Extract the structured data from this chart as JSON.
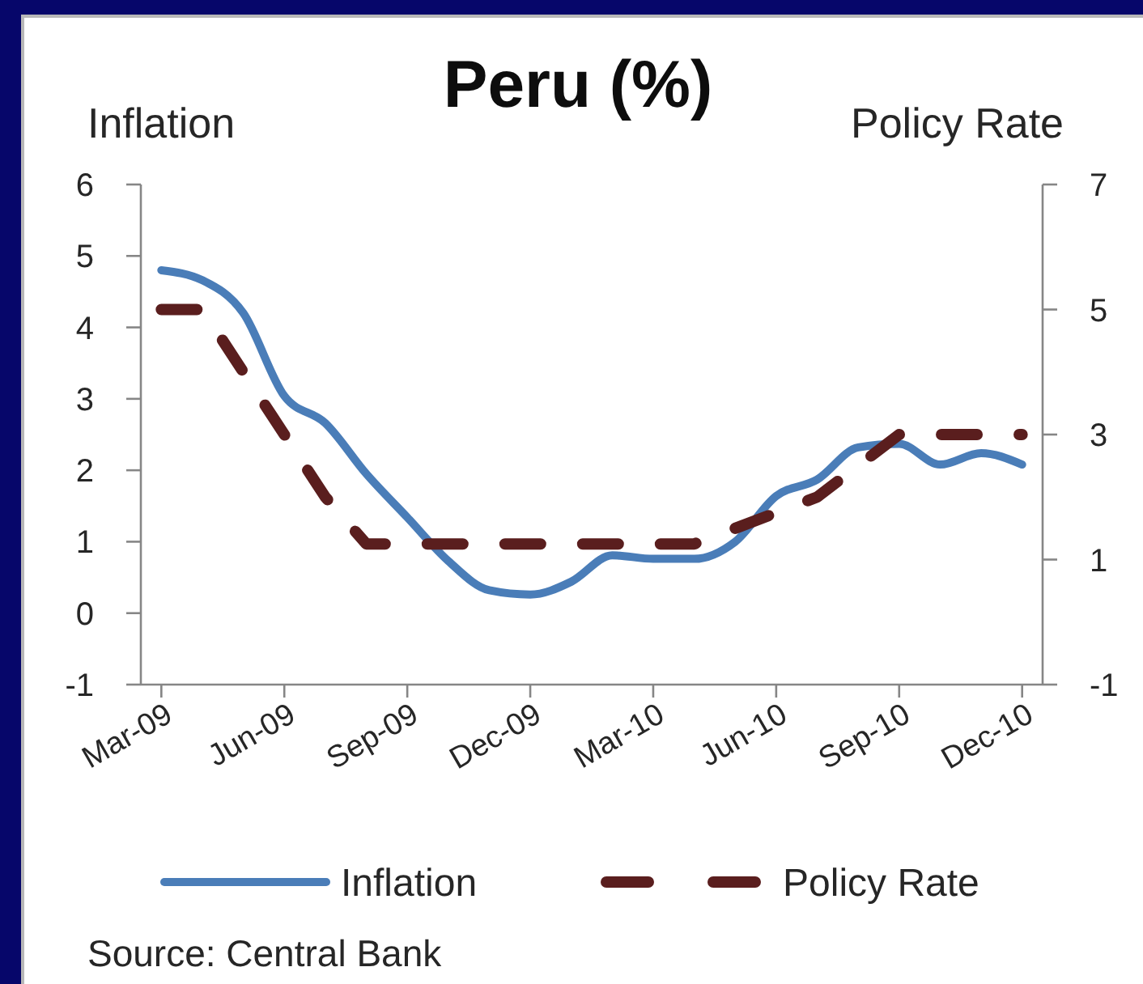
{
  "chart_data": {
    "type": "line",
    "title": "Peru (%)",
    "ylabel": "Inflation",
    "y2label": "Policy Rate",
    "categories": [
      "Mar-09",
      null,
      null,
      "Jun-09",
      null,
      null,
      "Sep-09",
      null,
      null,
      "Dec-09",
      null,
      null,
      "Mar-10",
      null,
      null,
      "Jun-10",
      null,
      null,
      "Sep-10",
      null,
      null,
      "Dec-10"
    ],
    "series": [
      {
        "name": "Inflation",
        "color": "#4a7db8",
        "line_style": "solid",
        "values": [
          4.8,
          4.66,
          4.2,
          3.04,
          2.66,
          1.95,
          1.34,
          0.73,
          0.32,
          0.26,
          0.44,
          0.81,
          0.76,
          0.76,
          1.0,
          1.64,
          1.87,
          2.32,
          2.37,
          2.08,
          2.24,
          2.08
        ]
      },
      {
        "name": "Policy Rate",
        "color": "#5a1e1e",
        "line_style": "dashed",
        "axis": "y2",
        "values": [
          5,
          5,
          4,
          3,
          2,
          1.25,
          1.25,
          1.25,
          1.25,
          1.25,
          1.25,
          1.25,
          1.25,
          1.25,
          1.5,
          1.75,
          2,
          2.5,
          3,
          3,
          3,
          3
        ]
      }
    ],
    "ylim": [
      -1,
      6
    ],
    "yticks": [
      -1,
      0,
      1,
      2,
      3,
      4,
      5,
      6
    ],
    "y2lim": [
      -1,
      7
    ],
    "y2ticks": [
      -1,
      1,
      3,
      5,
      7
    ],
    "legend": "bottom",
    "annotations": [
      "Source: Central Bank"
    ]
  }
}
